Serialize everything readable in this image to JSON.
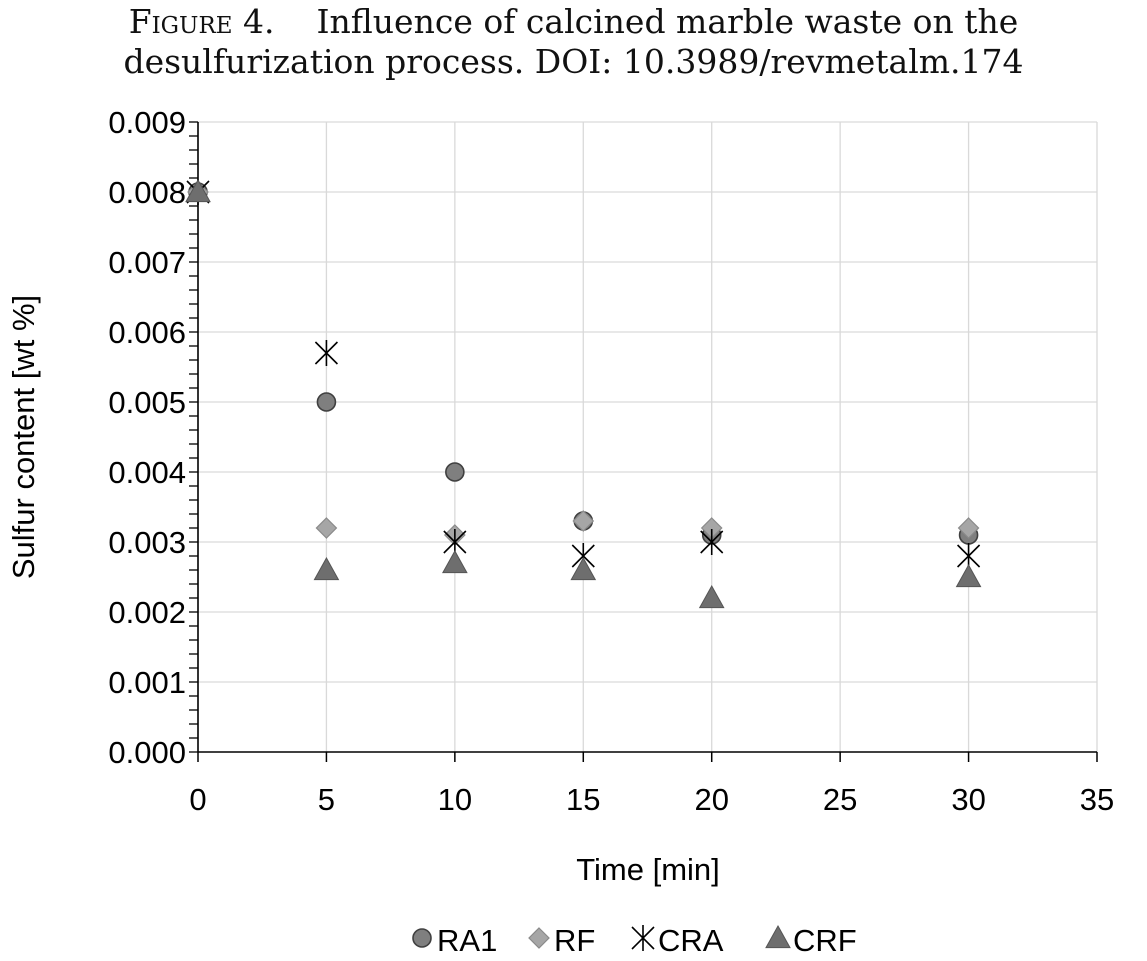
{
  "caption": {
    "lead": "Figure 4.",
    "line1": "Influence of calcined marble waste on the",
    "line2": "desulfurization process. DOI: 10.3989/revmetalm.174"
  },
  "chart_data": {
    "type": "scatter",
    "title": "",
    "xlabel": "Time [min]",
    "ylabel": "Sulfur content [wt %]",
    "xlim": [
      0,
      35
    ],
    "ylim": [
      0,
      0.009
    ],
    "xticks": [
      "0",
      "5",
      "10",
      "15",
      "20",
      "25",
      "30",
      "35"
    ],
    "yticks": [
      "0.000",
      "0.001",
      "0.002",
      "0.003",
      "0.004",
      "0.005",
      "0.006",
      "0.007",
      "0.008",
      "0.009"
    ],
    "grid": true,
    "legend": "bottom",
    "series": [
      {
        "name": "RA1",
        "marker": "circle",
        "color": "#7f7f7f",
        "x": [
          0,
          5,
          10,
          15,
          20,
          30
        ],
        "y": [
          0.008,
          0.005,
          0.004,
          0.0033,
          0.0031,
          0.0031
        ]
      },
      {
        "name": "RF",
        "marker": "diamond",
        "color": "#a6a6a6",
        "x": [
          0,
          5,
          10,
          15,
          20,
          30
        ],
        "y": [
          0.008,
          0.0032,
          0.0031,
          0.0033,
          0.0032,
          0.0032
        ]
      },
      {
        "name": "CRA",
        "marker": "asterisk",
        "color": "#000000",
        "x": [
          0,
          5,
          10,
          15,
          20,
          30
        ],
        "y": [
          0.008,
          0.0057,
          0.003,
          0.0028,
          0.003,
          0.0028
        ]
      },
      {
        "name": "CRF",
        "marker": "triangle",
        "color": "#6e6e6e",
        "x": [
          0,
          5,
          10,
          15,
          20,
          30
        ],
        "y": [
          0.008,
          0.0026,
          0.0027,
          0.0026,
          0.0022,
          0.0025
        ]
      }
    ]
  }
}
